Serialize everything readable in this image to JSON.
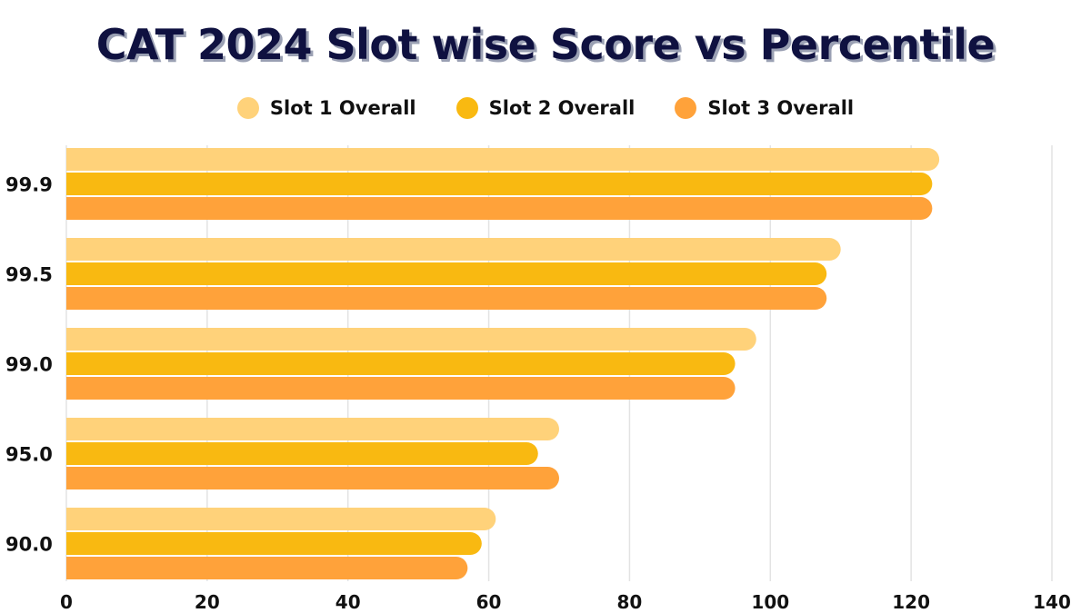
{
  "chart_data": {
    "type": "bar",
    "orientation": "horizontal",
    "title": "CAT 2024 Slot wise Score vs Percentile",
    "xlabel": "",
    "ylabel": "",
    "categories": [
      "99.9",
      "99.5",
      "99.0",
      "95.0",
      "90.0"
    ],
    "series": [
      {
        "name": "Slot 1 Overall",
        "color": "#ffd27a",
        "values": [
          124,
          110,
          98,
          70,
          61
        ]
      },
      {
        "name": "Slot 2 Overall",
        "color": "#f9b911",
        "values": [
          123,
          108,
          95,
          67,
          59
        ]
      },
      {
        "name": "Slot 3 Overall",
        "color": "#ffa23a",
        "values": [
          123,
          108,
          95,
          70,
          57
        ]
      }
    ],
    "xlim": [
      0,
      140
    ],
    "xticks": [
      "0",
      "20",
      "40",
      "60",
      "80",
      "100",
      "120",
      "140"
    ],
    "grid": true,
    "legend_position": "top-center"
  },
  "colors": {
    "title": "#0f1140",
    "grid": "#e3e3e3",
    "text": "#111111"
  }
}
